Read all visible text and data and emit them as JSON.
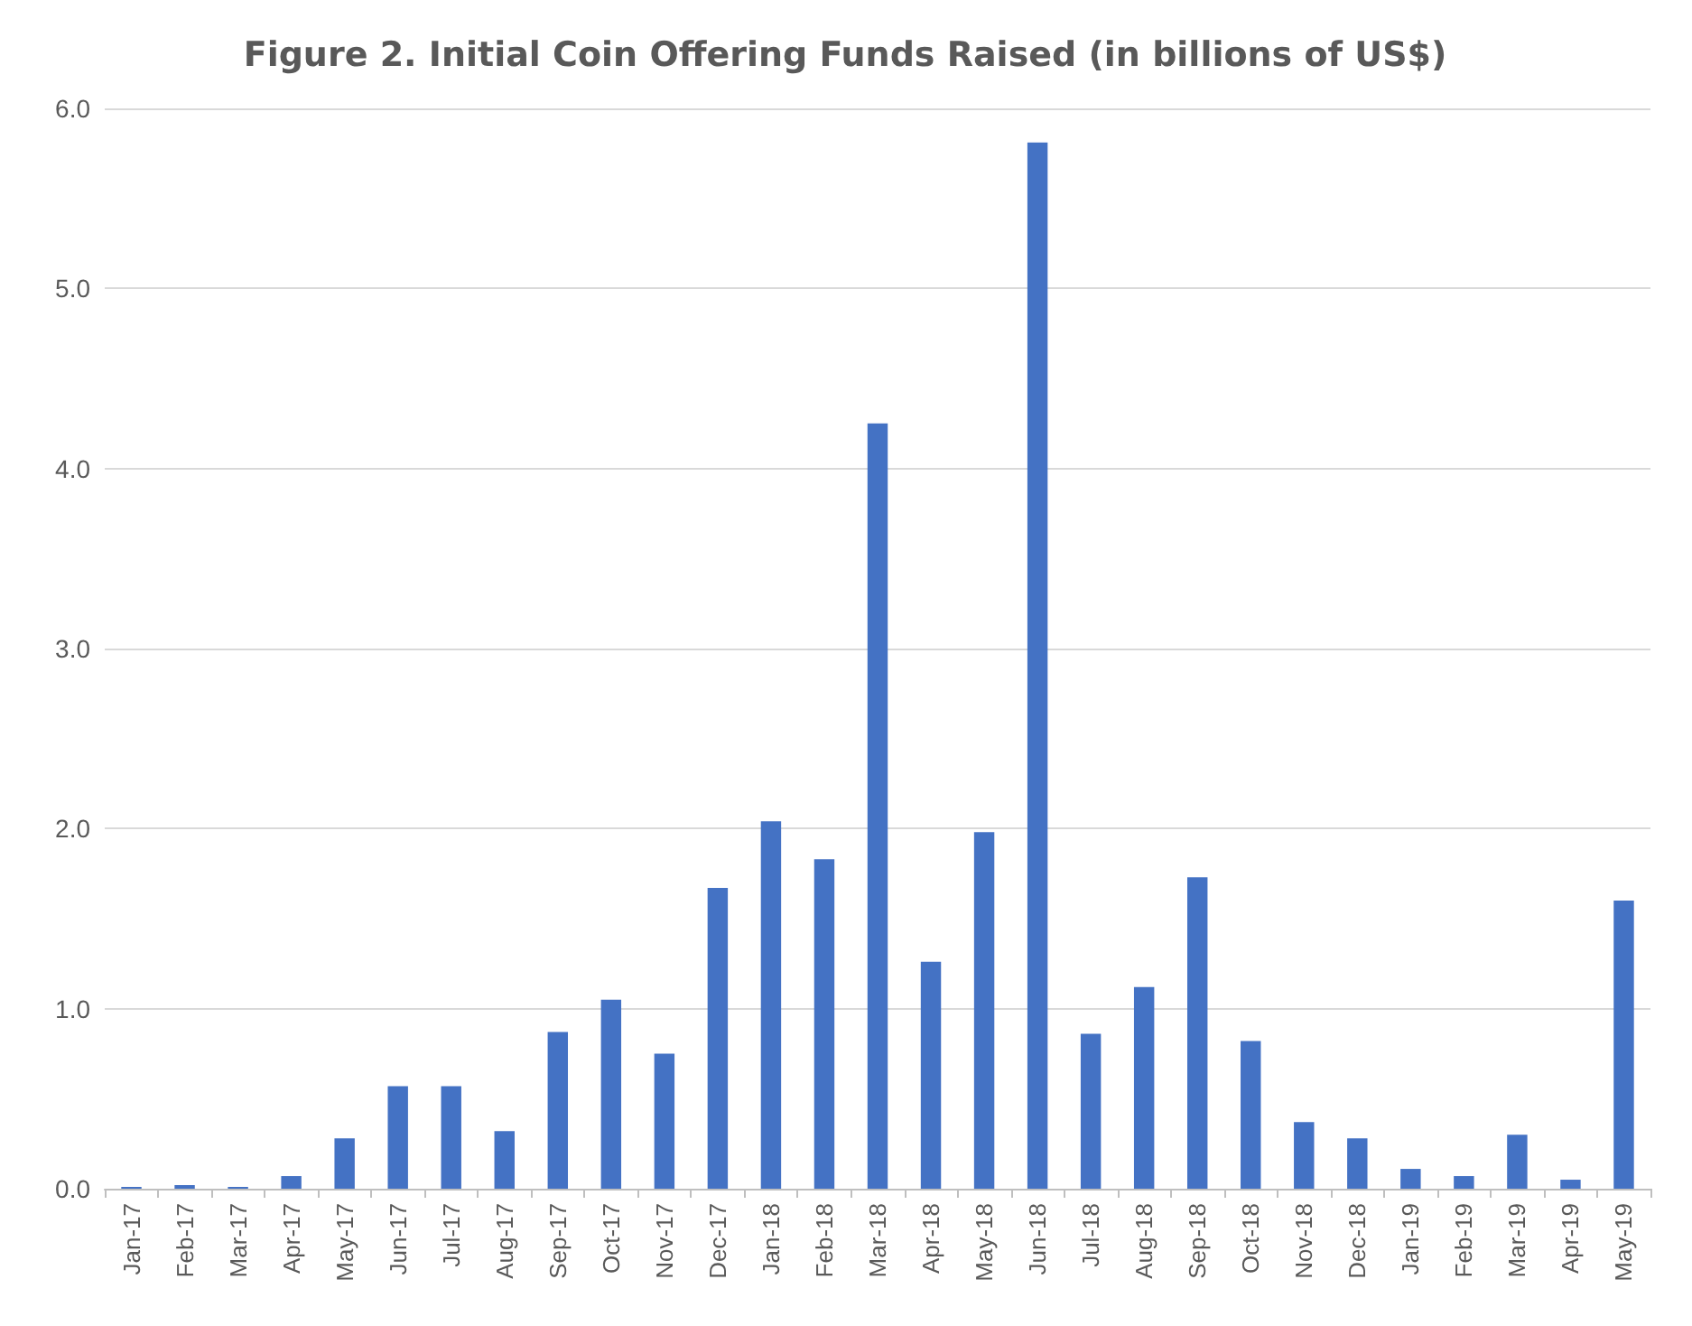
{
  "chart_data": {
    "type": "bar",
    "title": "Figure 2. Initial Coin Offering Funds Raised (in billions of US$)",
    "categories": [
      "Jan-17",
      "Feb-17",
      "Mar-17",
      "Apr-17",
      "May-17",
      "Jun-17",
      "Jul-17",
      "Aug-17",
      "Sep-17",
      "Oct-17",
      "Nov-17",
      "Dec-17",
      "Jan-18",
      "Feb-18",
      "Mar-18",
      "Apr-18",
      "May-18",
      "Jun-18",
      "Jul-18",
      "Aug-18",
      "Sep-18",
      "Oct-18",
      "Nov-18",
      "Dec-18",
      "Jan-19",
      "Feb-19",
      "Mar-19",
      "Apr-19",
      "May-19"
    ],
    "values": [
      0.01,
      0.02,
      0.01,
      0.07,
      0.28,
      0.57,
      0.57,
      0.32,
      0.87,
      1.05,
      0.75,
      1.67,
      2.04,
      1.83,
      4.25,
      1.26,
      1.98,
      5.81,
      0.86,
      1.12,
      1.73,
      0.82,
      0.37,
      0.28,
      0.11,
      0.07,
      0.3,
      0.05,
      1.6
    ],
    "color": "#4472c4",
    "ylim": [
      0,
      6
    ],
    "yticks": [
      {
        "value": 0,
        "label": "0.0"
      },
      {
        "value": 1,
        "label": "1.0"
      },
      {
        "value": 2,
        "label": "2.0"
      },
      {
        "value": 3,
        "label": "3.0"
      },
      {
        "value": 4,
        "label": "4.0"
      },
      {
        "value": 5,
        "label": "5.0"
      },
      {
        "value": 6,
        "label": "6.0"
      }
    ],
    "grid": "y"
  }
}
